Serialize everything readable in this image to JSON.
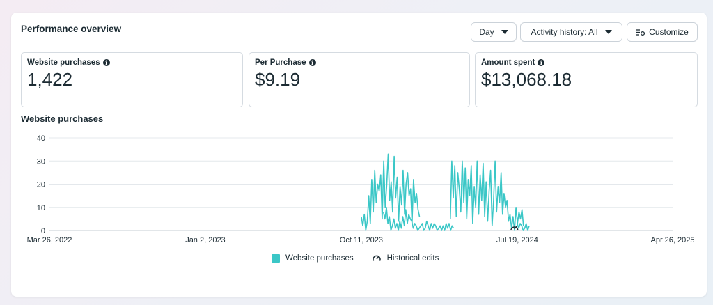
{
  "header": {
    "title": "Performance overview",
    "day_label": "Day",
    "activity_label": "Activity history: All",
    "customize_label": "Customize"
  },
  "metrics": [
    {
      "label": "Website purchases",
      "value": "1,422",
      "delta": "—"
    },
    {
      "label": "Per Purchase",
      "value": "$9.19",
      "delta": "—"
    },
    {
      "label": "Amount spent",
      "value": "$13,068.18",
      "delta": "—"
    }
  ],
  "section_title": "Website purchases",
  "legend": {
    "series_label": "Website purchases",
    "edits_label": "Historical edits"
  },
  "colors": {
    "series": "#3bc7c7",
    "grid": "#e4e8ec",
    "text": "#1c2b33"
  },
  "chart_data": {
    "type": "line",
    "title": "Website purchases",
    "x_tick_labels": [
      "Mar 26, 2022",
      "Jan 2, 2023",
      "Oct 11, 2023",
      "Jul 19, 2024",
      "Apr 26, 2025"
    ],
    "y_ticks": [
      0,
      10,
      20,
      30,
      40
    ],
    "ylim": [
      0,
      40
    ],
    "grid": true,
    "legend_position": "bottom",
    "series": [
      {
        "name": "Website purchases",
        "segments": [
          {
            "start": "Oct 11, 2023",
            "values": [
              6,
              2,
              7,
              0,
              4,
              15,
              3,
              22,
              8,
              26,
              12,
              20,
              17,
              24,
              5,
              30,
              10,
              19,
              33,
              13,
              21,
              8,
              32,
              14,
              23,
              4,
              19,
              11,
              26,
              7,
              20,
              25,
              15,
              18,
              3,
              22,
              12,
              16,
              9,
              6
            ]
          },
          {
            "start": "Nov 20, 2023",
            "values": [
              8,
              5,
              10,
              3,
              6,
              0,
              2,
              5,
              1,
              3,
              0,
              4,
              1,
              6,
              2,
              9,
              3,
              7,
              5,
              4,
              1,
              3,
              2,
              0,
              1,
              2,
              3,
              0,
              1,
              4,
              2,
              0,
              3,
              1,
              3,
              2,
              0,
              1,
              2,
              0,
              2,
              0,
              3,
              1,
              3,
              0,
              2,
              1
            ]
          },
          {
            "start": "Mar 20, 2024",
            "values": [
              5,
              30,
              14,
              28,
              6,
              25,
              18,
              8,
              30,
              12,
              27,
              5,
              22,
              15,
              28,
              3,
              19,
              10,
              30,
              7,
              24,
              13,
              29,
              6,
              21,
              4,
              17,
              26,
              2,
              13,
              30,
              8,
              19,
              12,
              25,
              7,
              16,
              10,
              13,
              4,
              7,
              1,
              6,
              0,
              10,
              3,
              8,
              5,
              9,
              2
            ]
          },
          {
            "start": "Jul 19, 2024",
            "values": [
              3,
              1,
              3,
              2,
              0,
              1,
              3,
              0,
              2
            ]
          }
        ]
      }
    ]
  }
}
